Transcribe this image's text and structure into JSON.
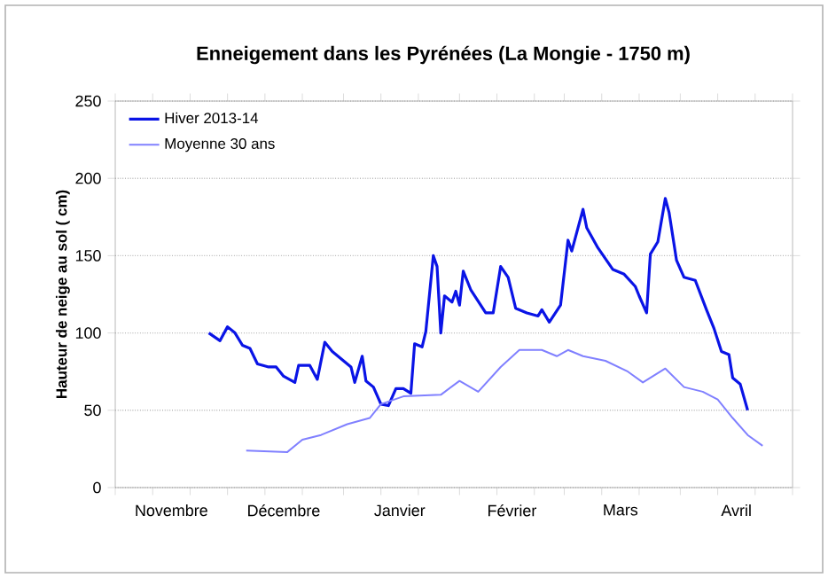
{
  "chart_data": {
    "type": "line",
    "title": "Enneigement dans les Pyrénées  (La Mongie - 1750 m)",
    "ylabel": "Hauteur de neige au sol  ( cm)",
    "series": [
      {
        "name": "Hiver 2013-14",
        "color": "#0a14e6",
        "x": [
          "2013-11-26",
          "2013-11-29",
          "2013-12-01",
          "2013-12-03",
          "2013-12-05",
          "2013-12-07",
          "2013-12-09",
          "2013-12-12",
          "2013-12-14",
          "2013-12-16",
          "2013-12-19",
          "2013-12-20",
          "2013-12-23",
          "2013-12-25",
          "2013-12-27",
          "2013-12-29",
          "2014-01-01",
          "2014-01-03",
          "2014-01-04",
          "2014-01-06",
          "2014-01-07",
          "2014-01-09",
          "2014-01-11",
          "2014-01-13",
          "2014-01-15",
          "2014-01-17",
          "2014-01-19",
          "2014-01-20",
          "2014-01-22",
          "2014-01-23",
          "2014-01-25",
          "2014-01-26",
          "2014-01-27",
          "2014-01-28",
          "2014-01-30",
          "2014-01-31",
          "2014-02-01",
          "2014-02-02",
          "2014-02-04",
          "2014-02-08",
          "2014-02-10",
          "2014-02-12",
          "2014-02-14",
          "2014-02-16",
          "2014-02-19",
          "2014-02-22",
          "2014-02-23",
          "2014-02-25",
          "2014-02-28",
          "2014-03-02",
          "2014-03-03",
          "2014-03-06",
          "2014-03-07",
          "2014-03-10",
          "2014-03-14",
          "2014-03-17",
          "2014-03-20",
          "2014-03-21",
          "2014-03-23",
          "2014-03-24",
          "2014-03-26",
          "2014-03-28",
          "2014-03-29",
          "2014-03-31",
          "2014-04-02",
          "2014-04-05",
          "2014-04-08",
          "2014-04-10",
          "2014-04-12",
          "2014-04-14",
          "2014-04-15",
          "2014-04-17",
          "2014-04-19"
        ],
        "values": [
          100,
          95,
          104,
          100,
          92,
          90,
          80,
          78,
          78,
          72,
          68,
          79,
          79,
          70,
          94,
          88,
          82,
          78,
          68,
          85,
          69,
          65,
          54,
          53,
          64,
          64,
          61,
          93,
          91,
          101,
          150,
          143,
          100,
          124,
          120,
          127,
          118,
          140,
          128,
          113,
          113,
          143,
          136,
          116,
          113,
          111,
          115,
          107,
          118,
          160,
          153,
          180,
          168,
          155,
          141,
          138,
          130,
          124,
          113,
          151,
          159,
          187,
          178,
          147,
          136,
          134,
          115,
          103,
          88,
          86,
          71,
          67,
          50
        ]
      },
      {
        "name": "Moyenne 30 ans",
        "color": "#8080ff",
        "x": [
          "2013-12-06",
          "2013-12-17",
          "2013-12-21",
          "2013-12-26",
          "2014-01-02",
          "2014-01-08",
          "2014-01-11",
          "2014-01-17",
          "2014-01-27",
          "2014-02-01",
          "2014-02-06",
          "2014-02-12",
          "2014-02-17",
          "2014-02-23",
          "2014-02-27",
          "2014-03-02",
          "2014-03-06",
          "2014-03-12",
          "2014-03-18",
          "2014-03-22",
          "2014-03-28",
          "2014-04-02",
          "2014-04-07",
          "2014-04-11",
          "2014-04-15",
          "2014-04-19",
          "2014-04-23"
        ],
        "values": [
          24,
          23,
          31,
          34,
          41,
          45,
          54,
          59,
          60,
          69,
          62,
          78,
          89,
          89,
          85,
          89,
          85,
          82,
          75,
          68,
          77,
          65,
          62,
          57,
          45,
          34,
          27
        ]
      }
    ],
    "xlim": [
      "2013-11-01",
      "2014-05-01"
    ],
    "xticks": [
      {
        "value": "2013-11-01",
        "label": null
      },
      {
        "value": "2013-11-11",
        "label": null
      },
      {
        "value": "2013-11-21",
        "label": null
      },
      {
        "value": "2013-12-01",
        "label": null
      },
      {
        "value": "2013-12-11",
        "label": null
      },
      {
        "value": "2013-12-21",
        "label": null
      },
      {
        "value": "2014-01-01",
        "label": null
      },
      {
        "value": "2014-01-11",
        "label": null
      },
      {
        "value": "2014-01-21",
        "label": null
      },
      {
        "value": "2014-02-01",
        "label": null
      },
      {
        "value": "2014-02-11",
        "label": null
      },
      {
        "value": "2014-02-21",
        "label": null
      },
      {
        "value": "2014-03-01",
        "label": null
      },
      {
        "value": "2014-03-11",
        "label": null
      },
      {
        "value": "2014-03-21",
        "label": null
      },
      {
        "value": "2014-04-01",
        "label": null
      },
      {
        "value": "2014-04-11",
        "label": null
      },
      {
        "value": "2014-04-21",
        "label": null
      },
      {
        "value": "2014-05-01",
        "label": null
      },
      {
        "value": "2013-11-16",
        "label": "Novembre"
      },
      {
        "value": "2013-12-16",
        "label": "Décembre"
      },
      {
        "value": "2014-01-16",
        "label": "Janvier"
      },
      {
        "value": "2014-02-15",
        "label": "Février"
      },
      {
        "value": "2014-03-16",
        "label": "Mars"
      },
      {
        "value": "2014-04-16",
        "label": "Avril"
      }
    ],
    "ylim": [
      0,
      250
    ],
    "yticks": [
      0,
      50,
      100,
      150,
      200,
      250
    ],
    "grid": "y",
    "legend": "top left",
    "marker": "none",
    "line_style": "solid"
  }
}
